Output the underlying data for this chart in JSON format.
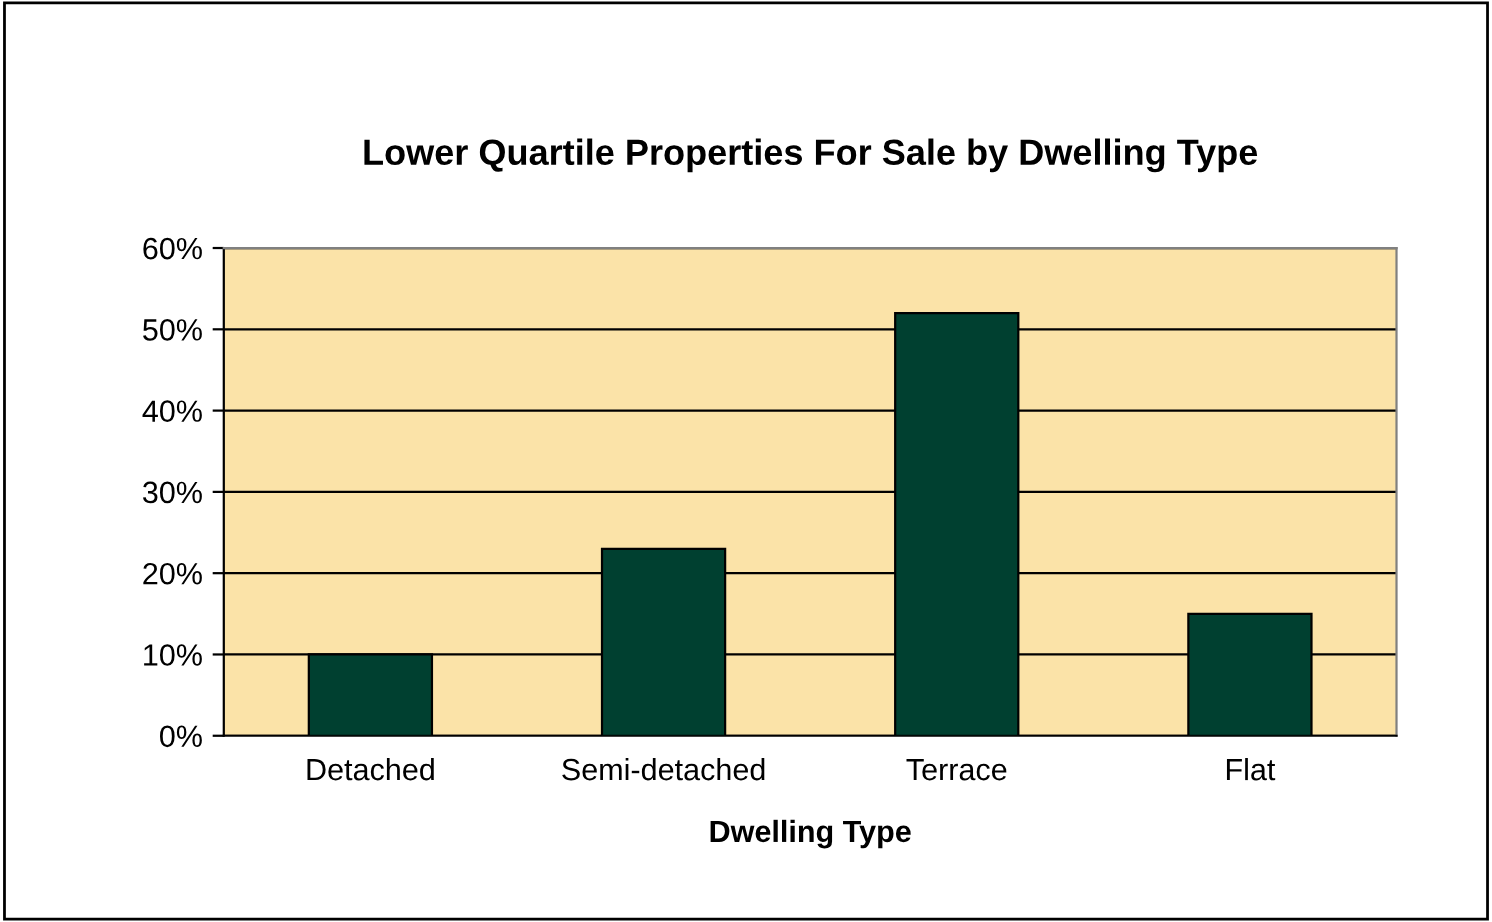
{
  "chart_data": {
    "type": "bar",
    "title": "Lower Quartile Properties For Sale by Dwelling Type",
    "xlabel": "Dwelling Type",
    "categories": [
      "Detached",
      "Semi-detached",
      "Terrace",
      "Flat"
    ],
    "values": [
      10,
      23,
      52,
      15
    ],
    "color": "#004030",
    "ylim": [
      0,
      60
    ],
    "yticks": [
      {
        "value": 0,
        "label": "0%"
      },
      {
        "value": 10,
        "label": "10%"
      },
      {
        "value": 20,
        "label": "20%"
      },
      {
        "value": 30,
        "label": "30%"
      },
      {
        "value": 40,
        "label": "40%"
      },
      {
        "value": 50,
        "label": "50%"
      },
      {
        "value": 60,
        "label": "60%"
      }
    ],
    "grid": "y",
    "legend": false
  }
}
